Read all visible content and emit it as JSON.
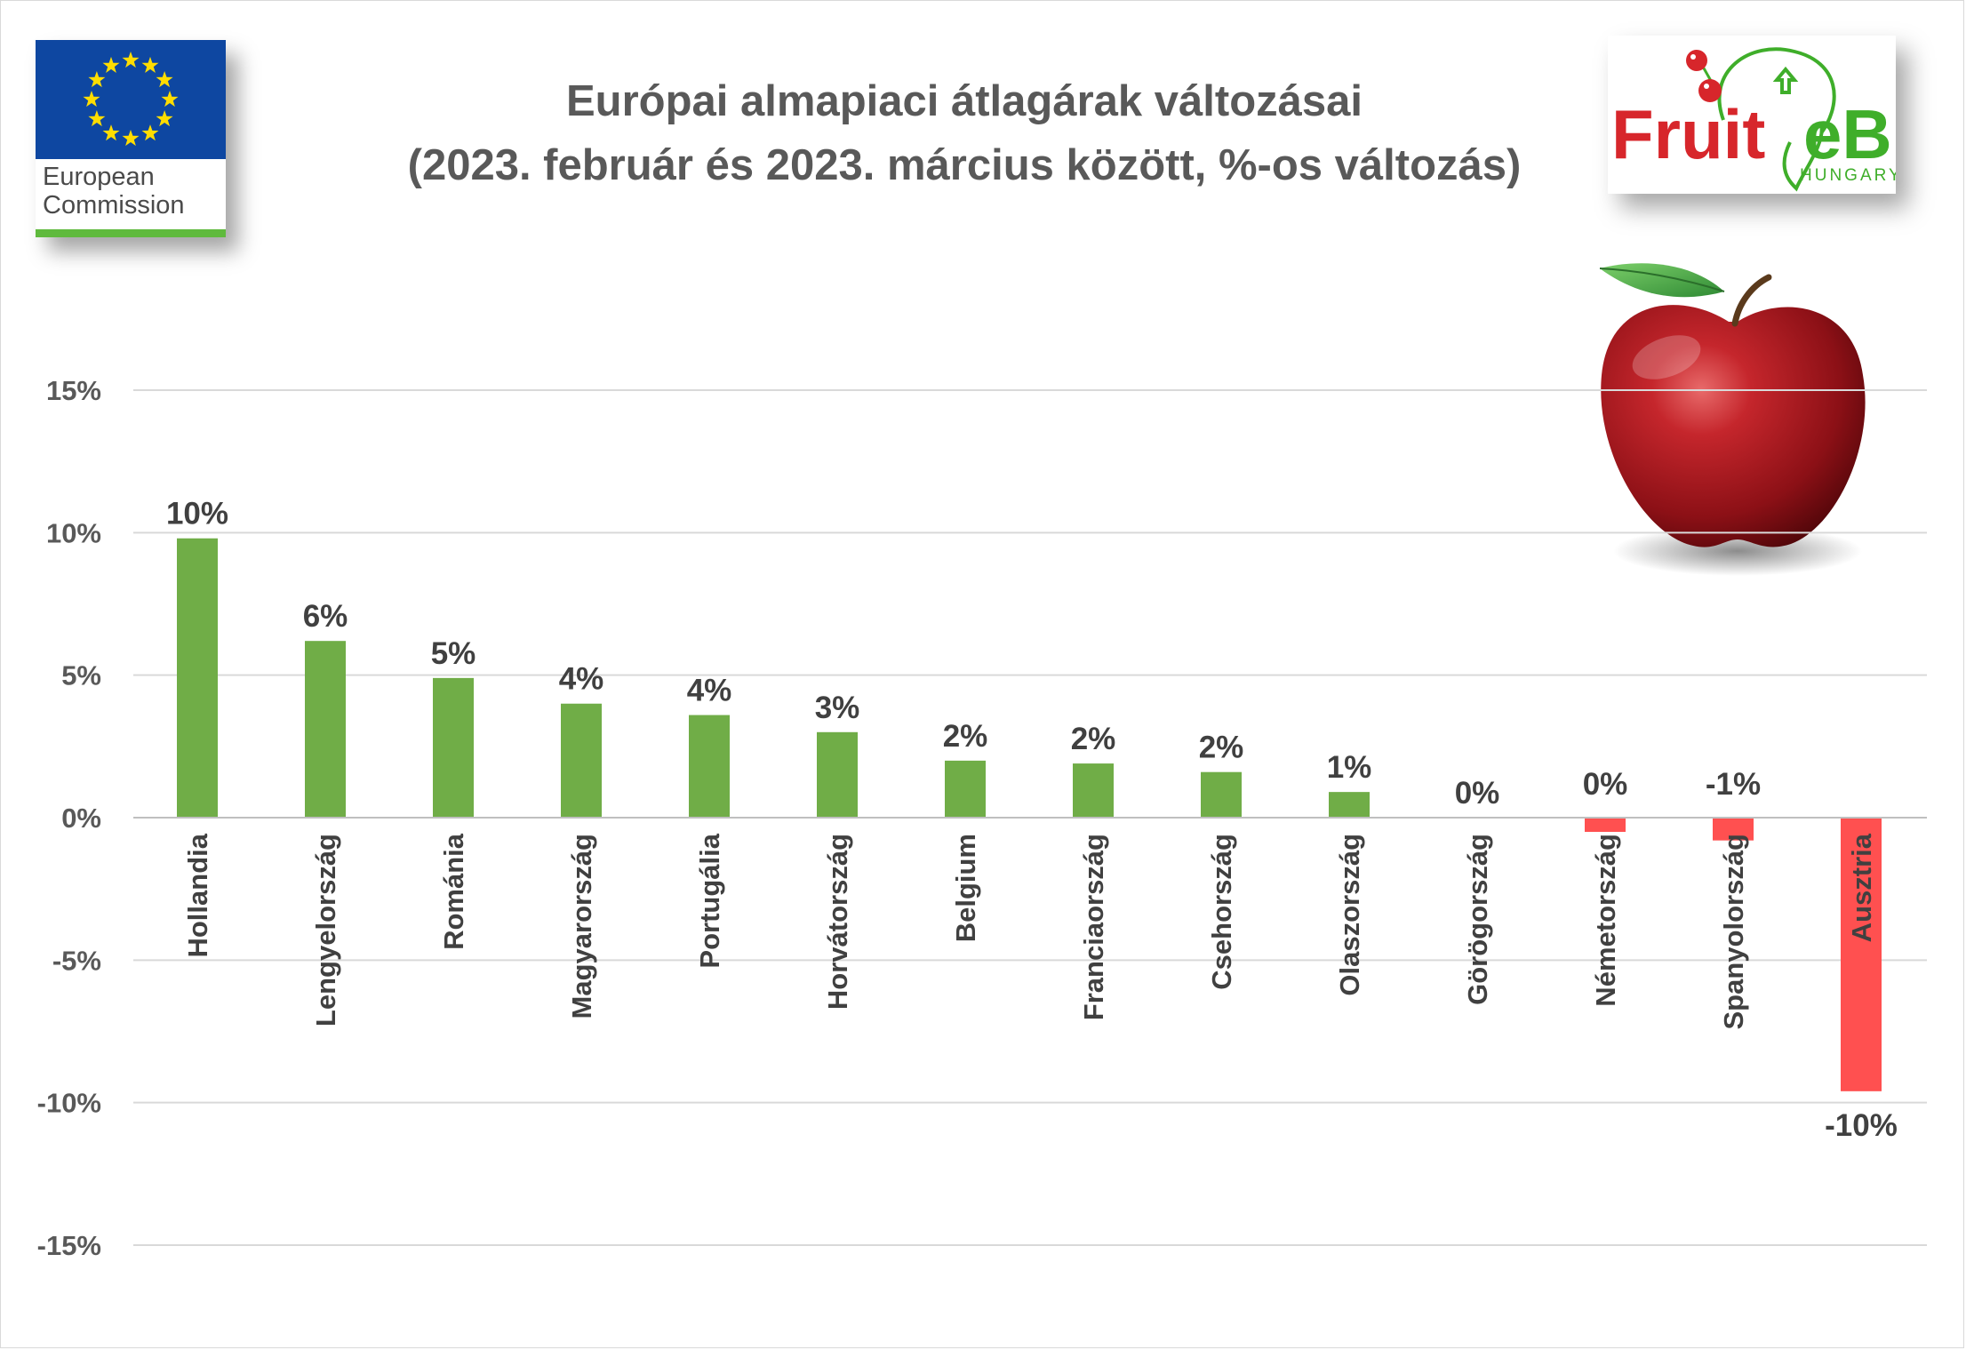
{
  "logos": {
    "eu": {
      "line1": "European",
      "line2": "Commission",
      "flag_color": "#0e47a1",
      "star_color": "#ffdd00",
      "bar_color": "#5fba3d"
    },
    "fruitveb": {
      "name_part1": "Fruit",
      "name_part2": "eB",
      "sub": "HUNGARY",
      "red": "#d7262b",
      "green": "#3fae2a"
    }
  },
  "chart_data": {
    "type": "bar",
    "title": "Európai almapiaci átlagárak változásai",
    "subtitle": "(2023. február és 2023. március között, %-os változás)",
    "categories": [
      "Hollandia",
      "Lengyelország",
      "Románia",
      "Magyarország",
      "Portugália",
      "Horvátország",
      "Belgium",
      "Franciaország",
      "Csehország",
      "Olaszország",
      "Görögország",
      "Németország",
      "Spanyolország",
      "Ausztria"
    ],
    "values": [
      9.8,
      6.2,
      4.9,
      4.0,
      3.6,
      3.0,
      2.0,
      1.9,
      1.6,
      0.9,
      0.0,
      -0.5,
      -0.8,
      -9.6
    ],
    "data_labels": [
      "10%",
      "6%",
      "5%",
      "4%",
      "4%",
      "3%",
      "2%",
      "2%",
      "2%",
      "1%",
      "0%",
      "0%",
      "-1%",
      "-10%"
    ],
    "ylim": [
      -15,
      15
    ],
    "yticks": [
      15,
      10,
      5,
      0,
      -5,
      -10,
      -15
    ],
    "ytick_labels": [
      "15%",
      "10%",
      "5%",
      "0%",
      "-5%",
      "-10%",
      "-15%"
    ],
    "grid": true,
    "legend": "none",
    "colors": {
      "positive": "#70ad47",
      "negative": "#ff5050",
      "grid": "#d9d9d9",
      "axis": "#bfbfbf"
    }
  }
}
